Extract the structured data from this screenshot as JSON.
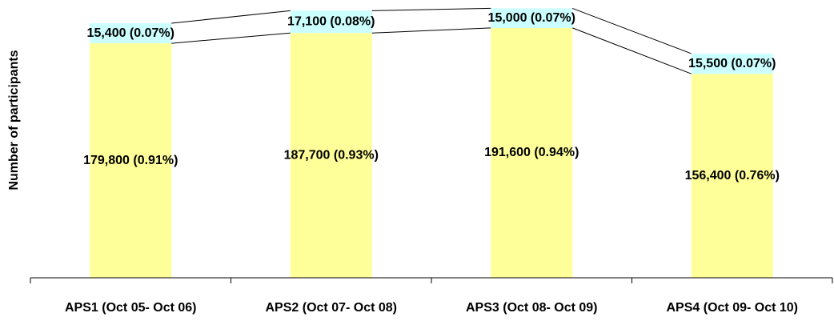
{
  "chart_data": {
    "type": "stacked_bar",
    "y_label": "Number of participants",
    "categories": [
      "APS1 (Oct 05- Oct 06)",
      "APS2 (Oct 07- Oct 08)",
      "APS3 (Oct 08- Oct 09)",
      "APS4 (Oct 09- Oct 10)"
    ],
    "series": [
      {
        "color": "#ffff99",
        "values": [
          179800,
          187700,
          191600,
          156400
        ],
        "value_labels": [
          "179,800 (0.91%)",
          "187,700 (0.93%)",
          "191,600 (0.94%)",
          "156,400 (0.76%)"
        ]
      },
      {
        "color": "#ccffff",
        "values": [
          15400,
          17100,
          15000,
          15500
        ],
        "value_labels": [
          "15,400 (0.07%)",
          "17,100 (0.08%)",
          "15,000 (0.07%)",
          "15,500 (0.07%)"
        ]
      }
    ],
    "ylim": [
      0,
      213000
    ]
  }
}
